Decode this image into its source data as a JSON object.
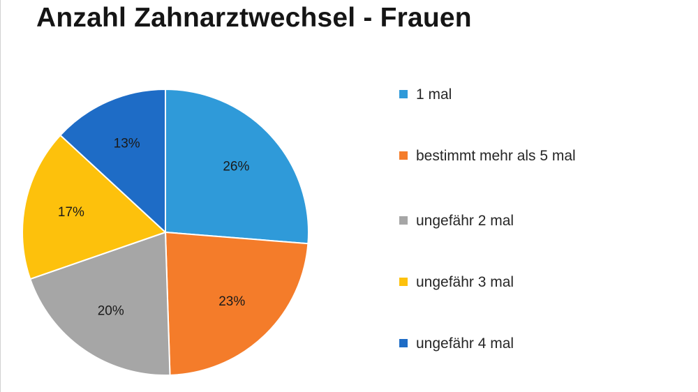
{
  "chart_data": {
    "type": "pie",
    "title": "Anzahl Zahnarztwechsel - Frauen",
    "series": [
      {
        "name": "1 mal",
        "value": 26,
        "label": "26%",
        "color": "#2f9ad9"
      },
      {
        "name": "bestimmt mehr als 5 mal",
        "value": 23,
        "label": "23%",
        "color": "#f47c2a"
      },
      {
        "name": "ungefähr 2 mal",
        "value": 20,
        "label": "20%",
        "color": "#a6a6a6"
      },
      {
        "name": "ungefähr 3 mal",
        "value": 17,
        "label": "17%",
        "color": "#fdc10c"
      },
      {
        "name": "ungefähr 4 mal",
        "value": 13,
        "label": "13%",
        "color": "#1e6cc6"
      }
    ],
    "legend_position": "right"
  }
}
